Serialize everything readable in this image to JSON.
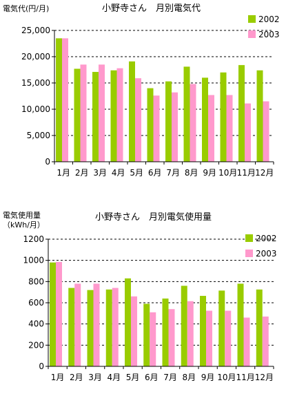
{
  "colors": {
    "series_2002": "#99cc00",
    "series_2003": "#ff99cc",
    "grid": "#000000",
    "axis": "#000000"
  },
  "chart_data": [
    {
      "type": "bar",
      "title": "小野寺さん　月別電気代",
      "ylabel": "電気代(円/月)",
      "xlabel": "",
      "categories": [
        "1月",
        "2月",
        "3月",
        "4月",
        "5月",
        "6月",
        "7月",
        "8月",
        "9月",
        "10月",
        "11月",
        "12月"
      ],
      "ylim": [
        0,
        25000
      ],
      "yticks": [
        "0",
        "5,000",
        "10,000",
        "15,000",
        "20,000",
        "25,000"
      ],
      "grid": "horizontal dashed",
      "legend_position": "top-right",
      "series": [
        {
          "name": "2002",
          "values": [
            23500,
            17700,
            17100,
            17400,
            19100,
            14000,
            15300,
            18100,
            16000,
            17000,
            18400,
            17400
          ]
        },
        {
          "name": "2003",
          "values": [
            23500,
            18500,
            18500,
            17800,
            15900,
            12600,
            13200,
            14800,
            12700,
            12700,
            11100,
            11500
          ]
        }
      ]
    },
    {
      "type": "bar",
      "title": "小野寺さん　月別電気使用量",
      "ylabel": [
        "電気使用量",
        "（kWh/月）"
      ],
      "xlabel": "",
      "categories": [
        "1月",
        "2月",
        "3月",
        "4月",
        "5月",
        "6月",
        "7月",
        "8月",
        "9月",
        "10月",
        "11月",
        "12月"
      ],
      "ylim": [
        0,
        1200
      ],
      "yticks": [
        "0",
        "200",
        "400",
        "600",
        "800",
        "1000",
        "1200"
      ],
      "grid": "horizontal dashed",
      "legend_position": "top-right",
      "series": [
        {
          "name": "2002",
          "values": [
            980,
            740,
            720,
            725,
            830,
            590,
            640,
            760,
            665,
            715,
            780,
            725
          ]
        },
        {
          "name": "2003",
          "values": [
            985,
            780,
            780,
            740,
            660,
            510,
            540,
            615,
            525,
            525,
            460,
            470
          ]
        }
      ]
    }
  ]
}
